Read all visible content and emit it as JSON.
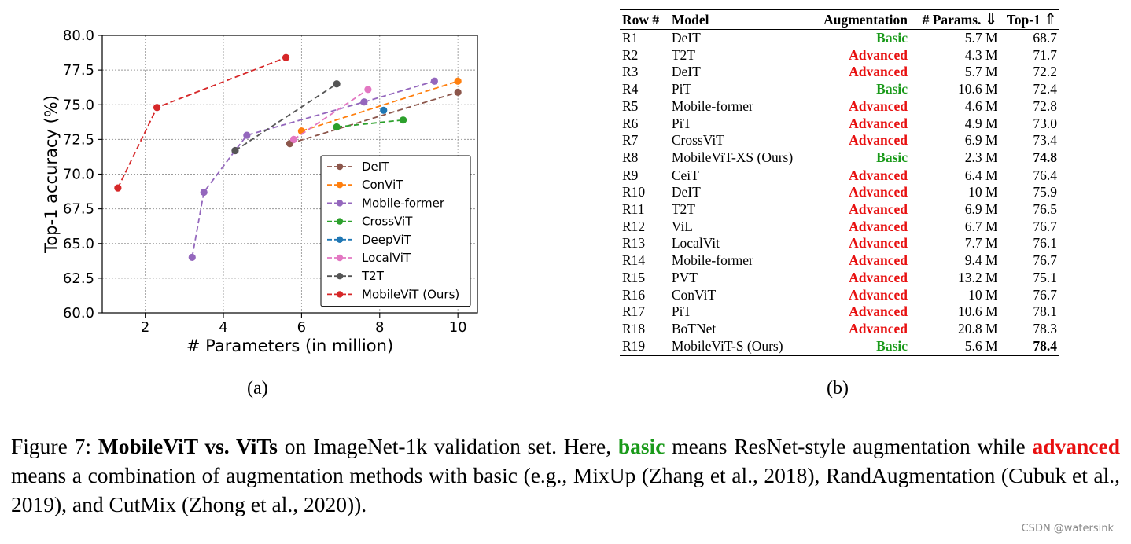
{
  "chart_data": {
    "type": "line",
    "title": "",
    "xlabel": "# Parameters (in million)",
    "ylabel": "Top-1 accuracy (%)",
    "xlim": [
      0.9,
      10.5
    ],
    "ylim": [
      60.0,
      80.0
    ],
    "xticks": [
      "2",
      "4",
      "6",
      "8",
      "10"
    ],
    "yticks": [
      "60.0",
      "62.5",
      "65.0",
      "67.5",
      "70.0",
      "72.5",
      "75.0",
      "77.5",
      "80.0"
    ],
    "grid": true,
    "line_style": "dashed",
    "legend_position": "lower-right",
    "series": [
      {
        "name": "DeIT",
        "color": "#8c564b",
        "points": [
          [
            5.7,
            72.2
          ],
          [
            10.0,
            75.9
          ]
        ]
      },
      {
        "name": "ConViT",
        "color": "#ff7f0e",
        "points": [
          [
            6.0,
            73.1
          ],
          [
            10.0,
            76.7
          ]
        ]
      },
      {
        "name": "Mobile-former",
        "color": "#9467bd",
        "points": [
          [
            3.2,
            64.0
          ],
          [
            3.5,
            68.7
          ],
          [
            4.3,
            71.7
          ],
          [
            4.6,
            72.8
          ],
          [
            7.6,
            75.2
          ],
          [
            9.4,
            76.7
          ]
        ]
      },
      {
        "name": "CrossViT",
        "color": "#2ca02c",
        "points": [
          [
            6.9,
            73.4
          ],
          [
            8.6,
            73.9
          ]
        ]
      },
      {
        "name": "DeepViT",
        "color": "#1f77b4",
        "points": [
          [
            8.1,
            74.6
          ]
        ]
      },
      {
        "name": "LocalViT",
        "color": "#e377c2",
        "points": [
          [
            5.8,
            72.5
          ],
          [
            7.7,
            76.1
          ]
        ]
      },
      {
        "name": "T2T",
        "color": "#555555",
        "points": [
          [
            4.3,
            71.7
          ],
          [
            6.9,
            76.5
          ]
        ]
      },
      {
        "name": "MobileViT (Ours)",
        "color": "#d62728",
        "points": [
          [
            1.3,
            69.0
          ],
          [
            2.3,
            74.8
          ],
          [
            5.6,
            78.4
          ]
        ]
      }
    ]
  },
  "labels": {
    "a": "(a)",
    "b": "(b)"
  },
  "table": {
    "headers": {
      "row": "Row #",
      "model": "Model",
      "augmentation": "Augmentation",
      "params": "# Params.",
      "params_arrow": "⇓",
      "top1": "Top-1",
      "top1_arrow": "⇑"
    },
    "rows": [
      {
        "row": "R1",
        "model": "DeIT",
        "aug": "Basic",
        "params": "5.7 M",
        "top1": "68.7"
      },
      {
        "row": "R2",
        "model": "T2T",
        "aug": "Advanced",
        "params": "4.3 M",
        "top1": "71.7"
      },
      {
        "row": "R3",
        "model": "DeIT",
        "aug": "Advanced",
        "params": "5.7 M",
        "top1": "72.2"
      },
      {
        "row": "R4",
        "model": "PiT",
        "aug": "Basic",
        "params": "10.6 M",
        "top1": "72.4"
      },
      {
        "row": "R5",
        "model": "Mobile-former",
        "aug": "Advanced",
        "params": "4.6 M",
        "top1": "72.8"
      },
      {
        "row": "R6",
        "model": "PiT",
        "aug": "Advanced",
        "params": "4.9 M",
        "top1": "73.0"
      },
      {
        "row": "R7",
        "model": "CrossViT",
        "aug": "Advanced",
        "params": "6.9 M",
        "top1": "73.4"
      },
      {
        "row": "R8",
        "model": "MobileViT-XS (Ours)",
        "aug": "Basic",
        "params": "2.3 M",
        "top1": "74.8",
        "best": true
      },
      {
        "row": "R9",
        "model": "CeiT",
        "aug": "Advanced",
        "params": "6.4 M",
        "top1": "76.4",
        "group_break": true
      },
      {
        "row": "R10",
        "model": "DeIT",
        "aug": "Advanced",
        "params": "10 M",
        "top1": "75.9"
      },
      {
        "row": "R11",
        "model": "T2T",
        "aug": "Advanced",
        "params": "6.9 M",
        "top1": "76.5"
      },
      {
        "row": "R12",
        "model": "ViL",
        "aug": "Advanced",
        "params": "6.7 M",
        "top1": "76.7"
      },
      {
        "row": "R13",
        "model": "LocalVit",
        "aug": "Advanced",
        "params": "7.7 M",
        "top1": "76.1"
      },
      {
        "row": "R14",
        "model": "Mobile-former",
        "aug": "Advanced",
        "params": "9.4 M",
        "top1": "76.7"
      },
      {
        "row": "R15",
        "model": "PVT",
        "aug": "Advanced",
        "params": "13.2 M",
        "top1": "75.1"
      },
      {
        "row": "R16",
        "model": "ConViT",
        "aug": "Advanced",
        "params": "10 M",
        "top1": "76.7"
      },
      {
        "row": "R17",
        "model": "PiT",
        "aug": "Advanced",
        "params": "10.6 M",
        "top1": "78.1"
      },
      {
        "row": "R18",
        "model": "BoTNet",
        "aug": "Advanced",
        "params": "20.8 M",
        "top1": "78.3"
      },
      {
        "row": "R19",
        "model": "MobileViT-S (Ours)",
        "aug": "Basic",
        "params": "5.6 M",
        "top1": "78.4",
        "best": true
      }
    ]
  },
  "caption": {
    "prefix": "Figure 7: ",
    "title": "MobileViT vs. ViTs",
    "part1": " on ImageNet-1k validation set. Here, ",
    "basic": "basic",
    "part2": " means ResNet-style augmentation while ",
    "advanced": "advanced",
    "part3": " means a combination of augmentation methods with basic (e.g., MixUp (Zhang et al., 2018), RandAugmentation (Cubuk et al., 2019), and CutMix (Zhong et al., 2020))."
  },
  "watermark": "CSDN @watersink",
  "colors": {
    "basic": "#1a9a1a",
    "advanced": "#e81010"
  }
}
